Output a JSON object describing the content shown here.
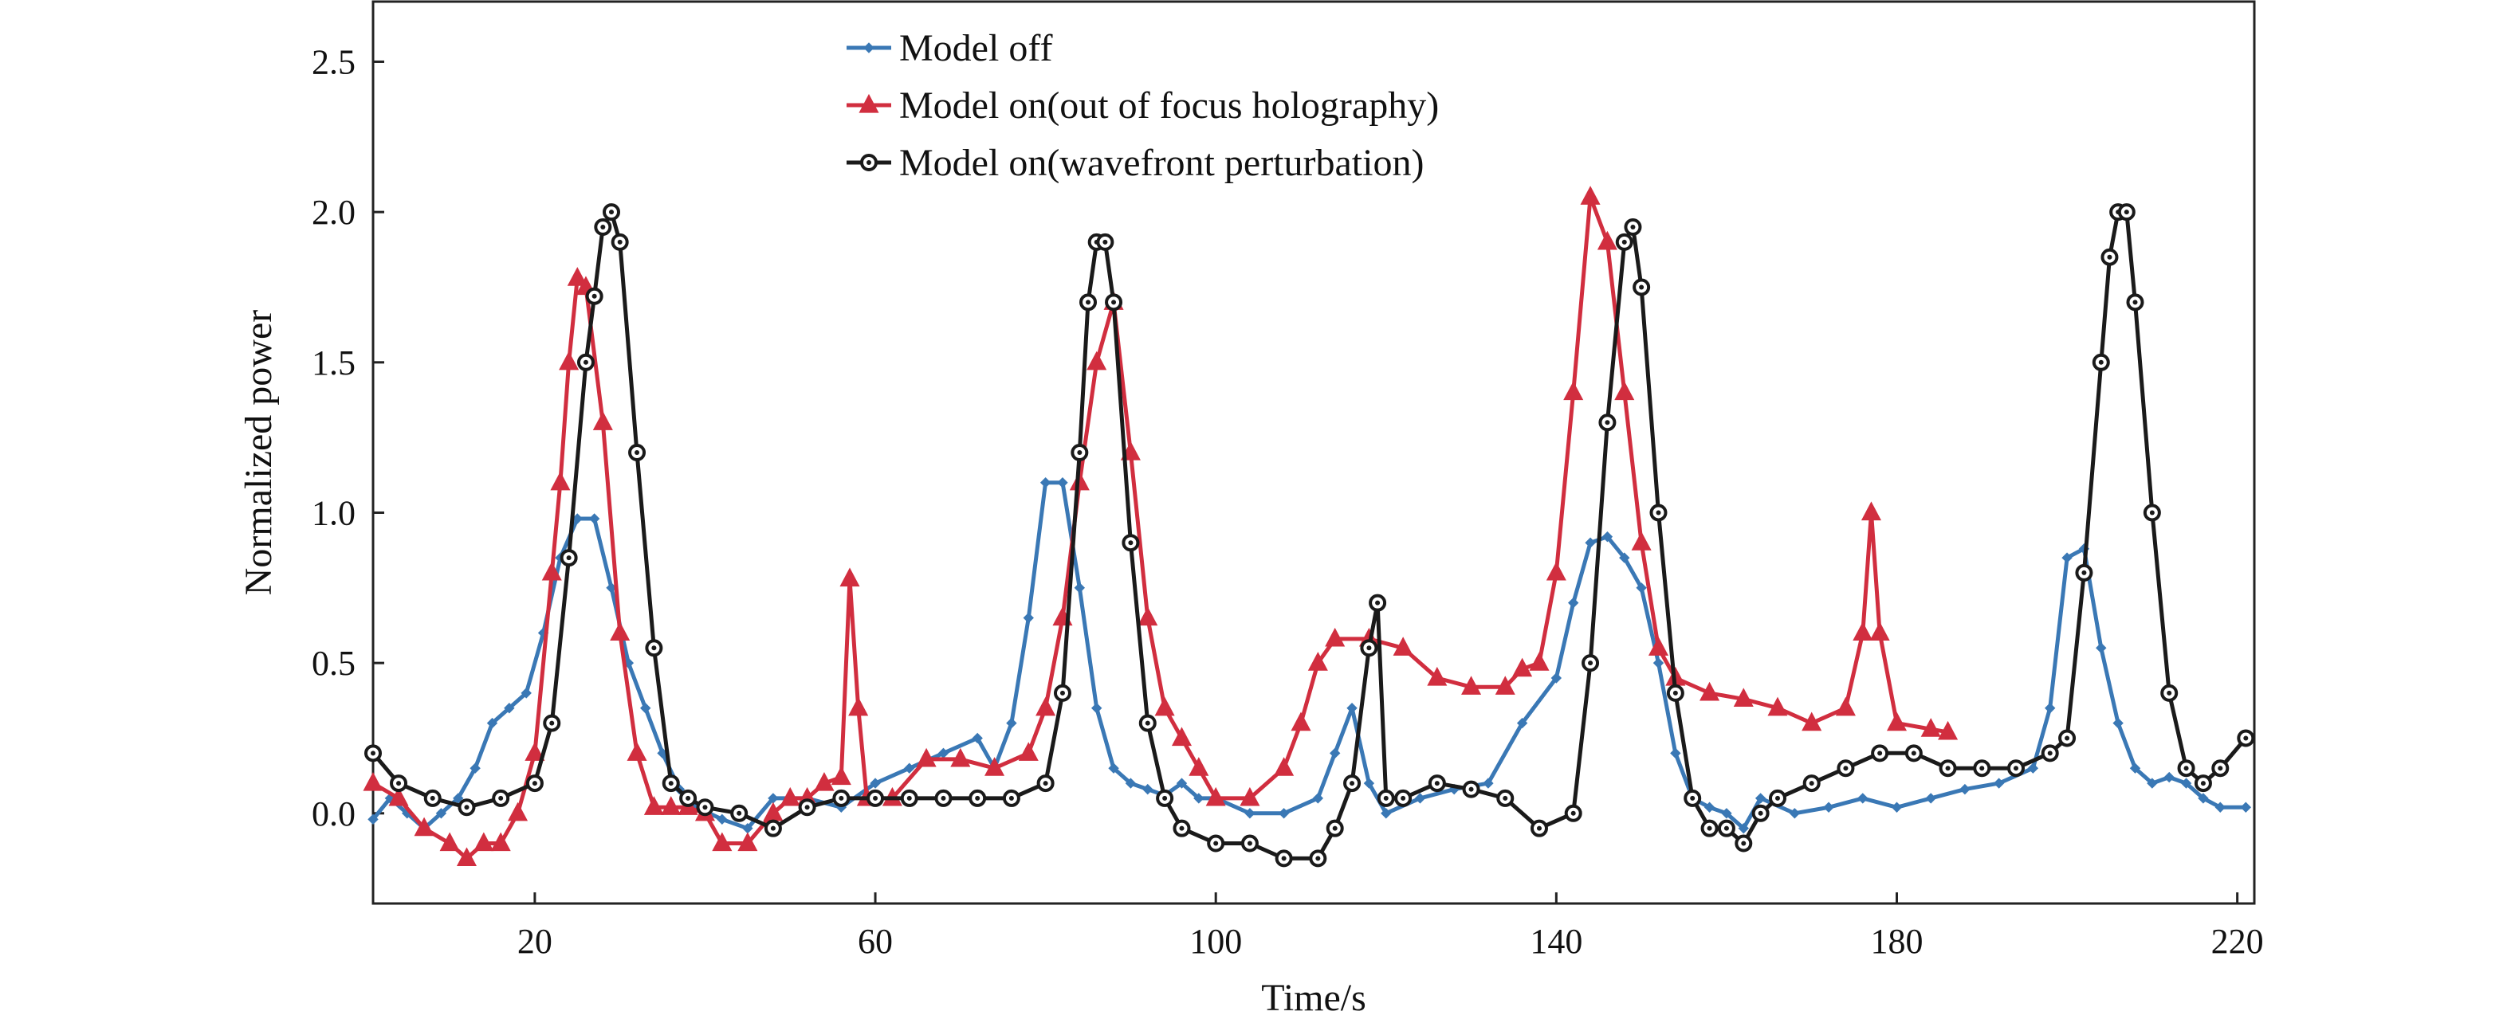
{
  "chart_data": {
    "type": "line",
    "title": "",
    "xlabel": "Time/s",
    "ylabel": "Normalized power",
    "xlim": [
      1,
      222
    ],
    "ylim": [
      -0.3,
      2.7
    ],
    "xticks": [
      20,
      60,
      100,
      140,
      180,
      220
    ],
    "yticks": [
      0.0,
      0.5,
      1.0,
      1.5,
      2.0,
      2.5
    ],
    "xtick_labels": [
      "20",
      "60",
      "100",
      "140",
      "180",
      "220"
    ],
    "ytick_labels": [
      "0.0",
      "0.5",
      "1.0",
      "1.5",
      "2.0",
      "2.5"
    ],
    "grid": false,
    "legend_position": "top-center",
    "series": [
      {
        "name": "Model off",
        "color": "#3a78b5",
        "marker": "diamond",
        "x": [
          1,
          3,
          5,
          7,
          9,
          11,
          13,
          15,
          17,
          19,
          21,
          23,
          25,
          27,
          29,
          31,
          33,
          35,
          37,
          39,
          42,
          45,
          48,
          52,
          56,
          60,
          64,
          68,
          72,
          74,
          76,
          78,
          80,
          82,
          84,
          86,
          88,
          90,
          92,
          94,
          96,
          98,
          100,
          104,
          108,
          112,
          114,
          116,
          118,
          120,
          124,
          128,
          132,
          136,
          140,
          142,
          144,
          146,
          148,
          150,
          152,
          154,
          156,
          158,
          160,
          162,
          164,
          168,
          172,
          176,
          180,
          184,
          188,
          192,
          196,
          198,
          200,
          202,
          204,
          206,
          208,
          210,
          212,
          214,
          216,
          218,
          221
        ],
        "y": [
          -0.02,
          0.05,
          0.0,
          -0.05,
          0.0,
          0.05,
          0.15,
          0.3,
          0.35,
          0.4,
          0.6,
          0.85,
          0.98,
          0.98,
          0.75,
          0.5,
          0.35,
          0.2,
          0.08,
          0.02,
          -0.02,
          -0.05,
          0.05,
          0.05,
          0.02,
          0.1,
          0.15,
          0.2,
          0.25,
          0.15,
          0.3,
          0.65,
          1.1,
          1.1,
          0.75,
          0.35,
          0.15,
          0.1,
          0.08,
          0.06,
          0.1,
          0.05,
          0.05,
          0.0,
          0.0,
          0.05,
          0.2,
          0.35,
          0.1,
          0.0,
          0.05,
          0.08,
          0.1,
          0.3,
          0.45,
          0.7,
          0.9,
          0.92,
          0.85,
          0.75,
          0.5,
          0.2,
          0.05,
          0.02,
          0.0,
          -0.05,
          0.05,
          0.0,
          0.02,
          0.05,
          0.02,
          0.05,
          0.08,
          0.1,
          0.15,
          0.35,
          0.85,
          0.88,
          0.55,
          0.3,
          0.15,
          0.1,
          0.12,
          0.1,
          0.05,
          0.02,
          0.02
        ]
      },
      {
        "name": "Model on(out of focus holography)",
        "color": "#d12e3f",
        "marker": "triangle",
        "x": [
          1,
          4,
          7,
          10,
          12,
          14,
          16,
          18,
          20,
          22,
          23,
          24,
          25,
          26,
          28,
          30,
          32,
          34,
          36,
          38,
          40,
          42,
          45,
          48,
          50,
          52,
          54,
          56,
          57,
          58,
          59,
          62,
          66,
          70,
          74,
          78,
          80,
          82,
          84,
          86,
          88,
          90,
          92,
          94,
          96,
          98,
          100,
          104,
          108,
          110,
          112,
          114,
          118,
          122,
          126,
          130,
          134,
          136,
          138,
          140,
          142,
          144,
          146,
          148,
          150,
          152,
          154,
          158,
          162,
          166,
          170,
          174,
          176,
          177,
          178,
          180,
          184,
          186
        ],
        "y": [
          0.1,
          0.05,
          -0.05,
          -0.1,
          -0.15,
          -0.1,
          -0.1,
          0.0,
          0.2,
          0.8,
          1.1,
          1.5,
          1.78,
          1.75,
          1.3,
          0.6,
          0.2,
          0.02,
          0.02,
          0.02,
          0.0,
          -0.1,
          -0.1,
          0.0,
          0.05,
          0.05,
          0.1,
          0.12,
          0.78,
          0.35,
          0.05,
          0.05,
          0.18,
          0.18,
          0.15,
          0.2,
          0.35,
          0.65,
          1.1,
          1.5,
          1.7,
          1.2,
          0.65,
          0.35,
          0.25,
          0.15,
          0.05,
          0.05,
          0.15,
          0.3,
          0.5,
          0.58,
          0.58,
          0.55,
          0.45,
          0.42,
          0.42,
          0.48,
          0.5,
          0.8,
          1.4,
          2.05,
          1.9,
          1.4,
          0.9,
          0.55,
          0.45,
          0.4,
          0.38,
          0.35,
          0.3,
          0.35,
          0.6,
          1.0,
          0.6,
          0.3,
          0.28,
          0.27
        ]
      },
      {
        "name": "Model on(wavefront perturbation)",
        "color": "#1a1a1a",
        "marker": "circle",
        "x": [
          1,
          4,
          8,
          12,
          16,
          20,
          22,
          24,
          26,
          27,
          28,
          29,
          30,
          32,
          34,
          36,
          38,
          40,
          44,
          48,
          52,
          56,
          60,
          64,
          68,
          72,
          76,
          80,
          82,
          84,
          85,
          86,
          87,
          88,
          90,
          92,
          94,
          96,
          100,
          104,
          108,
          112,
          114,
          116,
          118,
          119,
          120,
          122,
          126,
          130,
          134,
          138,
          142,
          144,
          146,
          148,
          149,
          150,
          152,
          154,
          156,
          158,
          160,
          162,
          164,
          166,
          170,
          174,
          178,
          182,
          186,
          190,
          194,
          198,
          200,
          202,
          204,
          205,
          206,
          207,
          208,
          210,
          212,
          214,
          216,
          218,
          221
        ],
        "y": [
          0.2,
          0.1,
          0.05,
          0.02,
          0.05,
          0.1,
          0.3,
          0.85,
          1.5,
          1.72,
          1.95,
          2.0,
          1.9,
          1.2,
          0.55,
          0.1,
          0.05,
          0.02,
          0.0,
          -0.05,
          0.02,
          0.05,
          0.05,
          0.05,
          0.05,
          0.05,
          0.05,
          0.1,
          0.4,
          1.2,
          1.7,
          1.9,
          1.9,
          1.7,
          0.9,
          0.3,
          0.05,
          -0.05,
          -0.1,
          -0.1,
          -0.15,
          -0.15,
          -0.05,
          0.1,
          0.55,
          0.7,
          0.05,
          0.05,
          0.1,
          0.08,
          0.05,
          -0.05,
          0.0,
          0.5,
          1.3,
          1.9,
          1.95,
          1.75,
          1.0,
          0.4,
          0.05,
          -0.05,
          -0.05,
          -0.1,
          0.0,
          0.05,
          0.1,
          0.15,
          0.2,
          0.2,
          0.15,
          0.15,
          0.15,
          0.2,
          0.25,
          0.8,
          1.5,
          1.85,
          2.0,
          2.0,
          1.7,
          1.0,
          0.4,
          0.15,
          0.1,
          0.15,
          0.25
        ]
      }
    ]
  }
}
